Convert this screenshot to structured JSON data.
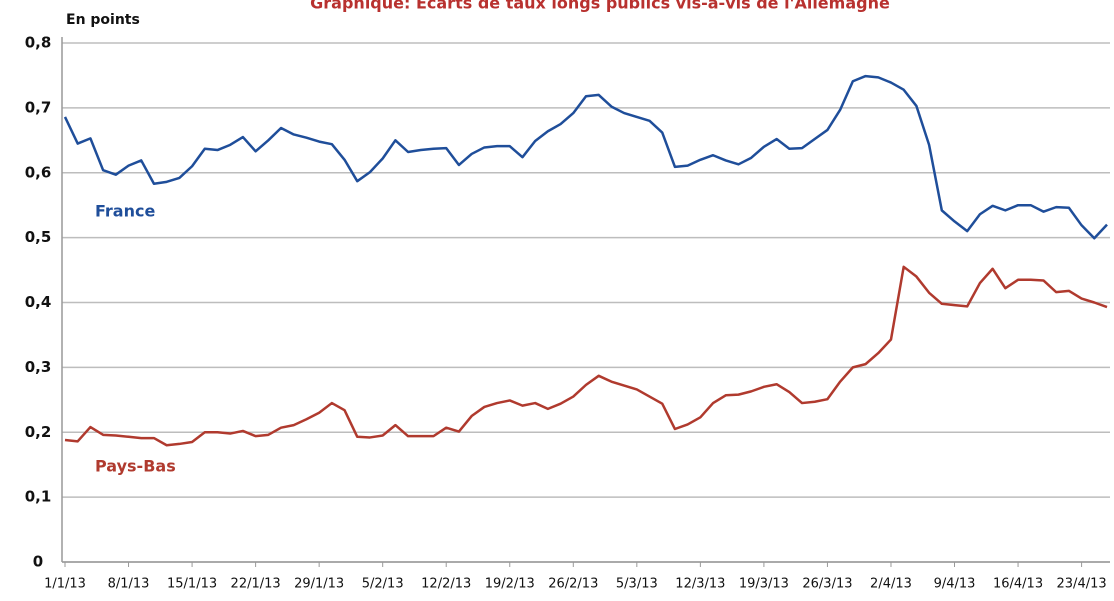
{
  "chart_data": {
    "type": "line",
    "title": "Graphique: Ecarts de taux longs publics vis-à-vis de l'Allemagne",
    "y_label": "En points",
    "categories": [
      "1/1/13",
      null,
      null,
      null,
      null,
      "8/1/13",
      null,
      null,
      null,
      null,
      "15/1/13",
      null,
      null,
      null,
      null,
      "22/1/13",
      null,
      null,
      null,
      null,
      "29/1/13",
      null,
      null,
      null,
      null,
      "5/2/13",
      null,
      null,
      null,
      null,
      "12/2/13",
      null,
      null,
      null,
      null,
      "19/2/13",
      null,
      null,
      null,
      null,
      "26/2/13",
      null,
      null,
      null,
      null,
      "5/3/13",
      null,
      null,
      null,
      null,
      "12/3/13",
      null,
      null,
      null,
      null,
      "19/3/13",
      null,
      null,
      null,
      null,
      "26/3/13",
      null,
      null,
      null,
      null,
      "2/4/13",
      null,
      null,
      null,
      null,
      "9/4/13",
      null,
      null,
      null,
      null,
      "16/4/13",
      null,
      null,
      null,
      null,
      "23/4/13",
      null,
      null
    ],
    "series": [
      {
        "name": "France",
        "color": "#1f4e9a",
        "values": [
          0.686,
          0.645,
          0.653,
          0.604,
          0.597,
          0.611,
          0.619,
          0.583,
          0.586,
          0.592,
          0.61,
          0.637,
          0.635,
          0.643,
          0.655,
          0.633,
          0.65,
          0.669,
          0.659,
          0.654,
          0.648,
          0.644,
          0.62,
          0.587,
          0.601,
          0.622,
          0.65,
          0.632,
          0.635,
          0.637,
          0.638,
          0.612,
          0.629,
          0.639,
          0.641,
          0.641,
          0.624,
          0.649,
          0.664,
          0.675,
          0.692,
          0.718,
          0.72,
          0.702,
          0.692,
          0.686,
          0.68,
          0.662,
          0.609,
          0.611,
          0.62,
          0.627,
          0.619,
          0.613,
          0.623,
          0.64,
          0.652,
          0.637,
          0.638,
          0.652,
          0.666,
          0.697,
          0.741,
          0.749,
          0.747,
          0.739,
          0.728,
          0.703,
          0.643,
          0.542,
          0.525,
          0.51,
          0.536,
          0.549,
          0.542,
          0.55,
          0.55,
          0.54,
          0.547,
          0.546,
          0.519,
          0.499,
          0.52
        ]
      },
      {
        "name": "Pays-Bas",
        "color": "#b03a2e",
        "values": [
          0.188,
          0.186,
          0.208,
          0.196,
          0.195,
          0.193,
          0.191,
          0.191,
          0.18,
          0.182,
          0.185,
          0.2,
          0.2,
          0.198,
          0.202,
          0.194,
          0.196,
          0.207,
          0.211,
          0.22,
          0.23,
          0.245,
          0.234,
          0.193,
          0.192,
          0.195,
          0.211,
          0.194,
          0.194,
          0.194,
          0.207,
          0.201,
          0.225,
          0.239,
          0.245,
          0.249,
          0.241,
          0.245,
          0.236,
          0.244,
          0.255,
          0.273,
          0.287,
          0.278,
          0.272,
          0.266,
          0.255,
          0.244,
          0.205,
          0.212,
          0.223,
          0.245,
          0.257,
          0.258,
          0.263,
          0.27,
          0.274,
          0.262,
          0.245,
          0.247,
          0.251,
          0.278,
          0.3,
          0.305,
          0.322,
          0.343,
          0.455,
          0.44,
          0.415,
          0.398,
          0.396,
          0.394,
          0.43,
          0.452,
          0.422,
          0.435,
          0.435,
          0.434,
          0.416,
          0.418,
          0.406,
          0.4,
          0.393
        ]
      }
    ],
    "ylim": [
      0,
      0.8
    ],
    "yticks": [
      0,
      {
        "value": 0.1,
        "label": "0,1"
      },
      {
        "value": 0.2,
        "label": "0,2"
      },
      {
        "value": 0.3,
        "label": "0,3"
      },
      {
        "value": 0.4,
        "label": "0,4"
      },
      {
        "value": 0.5,
        "label": "0,5"
      },
      {
        "value": 0.6,
        "label": "0,6"
      },
      {
        "value": 0.7,
        "label": "0,7"
      },
      {
        "value": 0.8,
        "label": "0,8"
      }
    ],
    "grid": true
  }
}
